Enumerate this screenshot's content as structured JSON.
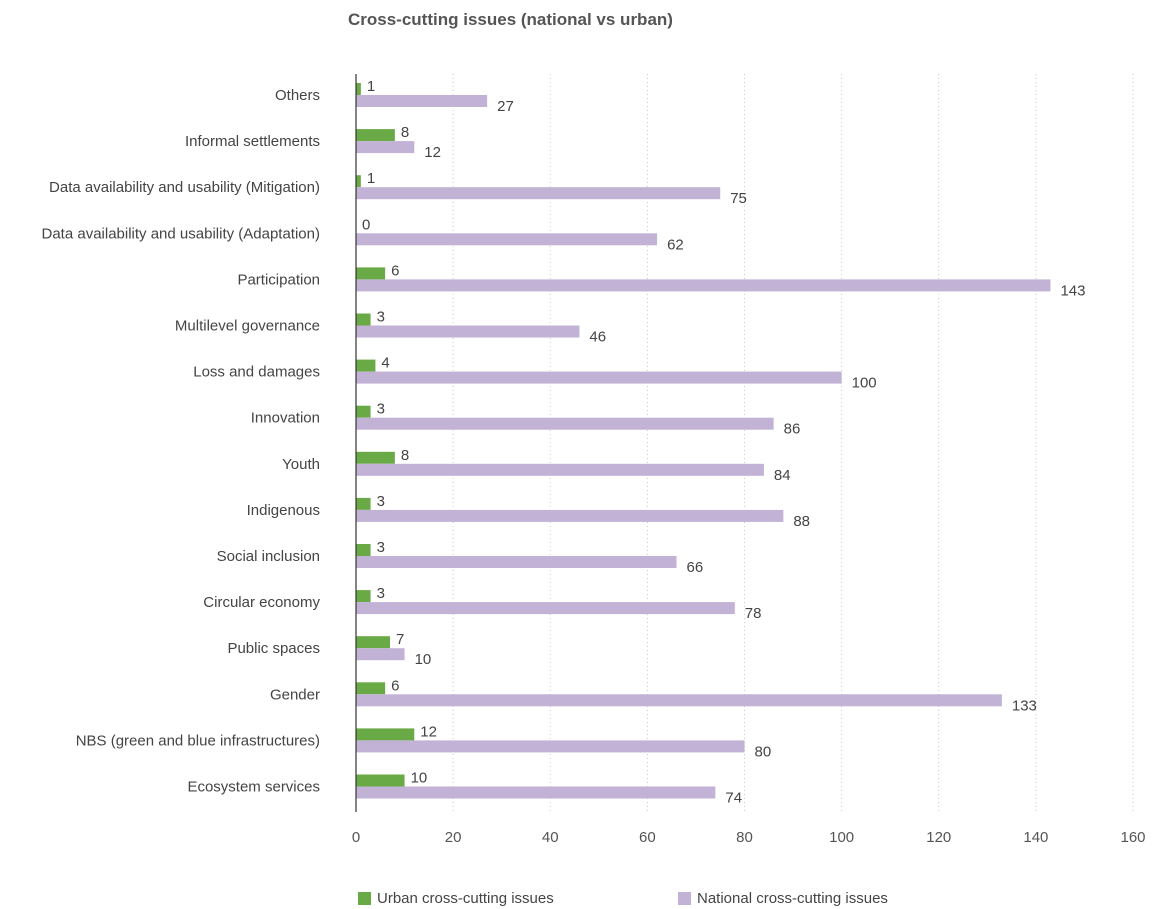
{
  "chart_data": {
    "type": "bar",
    "orientation": "horizontal",
    "title": "Cross-cutting issues (national vs urban)",
    "xlabel": "",
    "ylabel": "",
    "xlim": [
      0,
      160
    ],
    "x_ticks": [
      0,
      20,
      40,
      60,
      80,
      100,
      120,
      140,
      160
    ],
    "grid": true,
    "legend_position": "bottom",
    "categories": [
      "Others",
      "Informal settlements",
      "Data availability and usability (Mitigation)",
      "Data availability and usability (Adaptation)",
      "Participation",
      "Multilevel governance",
      "Loss and damages",
      "Innovation",
      "Youth",
      "Indigenous",
      "Social inclusion",
      "Circular economy",
      "Public spaces",
      "Gender",
      "NBS (green and blue infrastructures)",
      "Ecosystem services"
    ],
    "series": [
      {
        "name": "Urban cross-cutting issues",
        "color": "#6aaa46",
        "values": [
          1,
          8,
          1,
          0,
          6,
          3,
          4,
          3,
          8,
          3,
          3,
          3,
          7,
          6,
          12,
          10
        ]
      },
      {
        "name": "National cross-cutting issues",
        "color": "#c2b2d6",
        "values": [
          27,
          12,
          75,
          62,
          143,
          46,
          100,
          86,
          84,
          88,
          66,
          78,
          10,
          133,
          80,
          74
        ]
      }
    ]
  }
}
